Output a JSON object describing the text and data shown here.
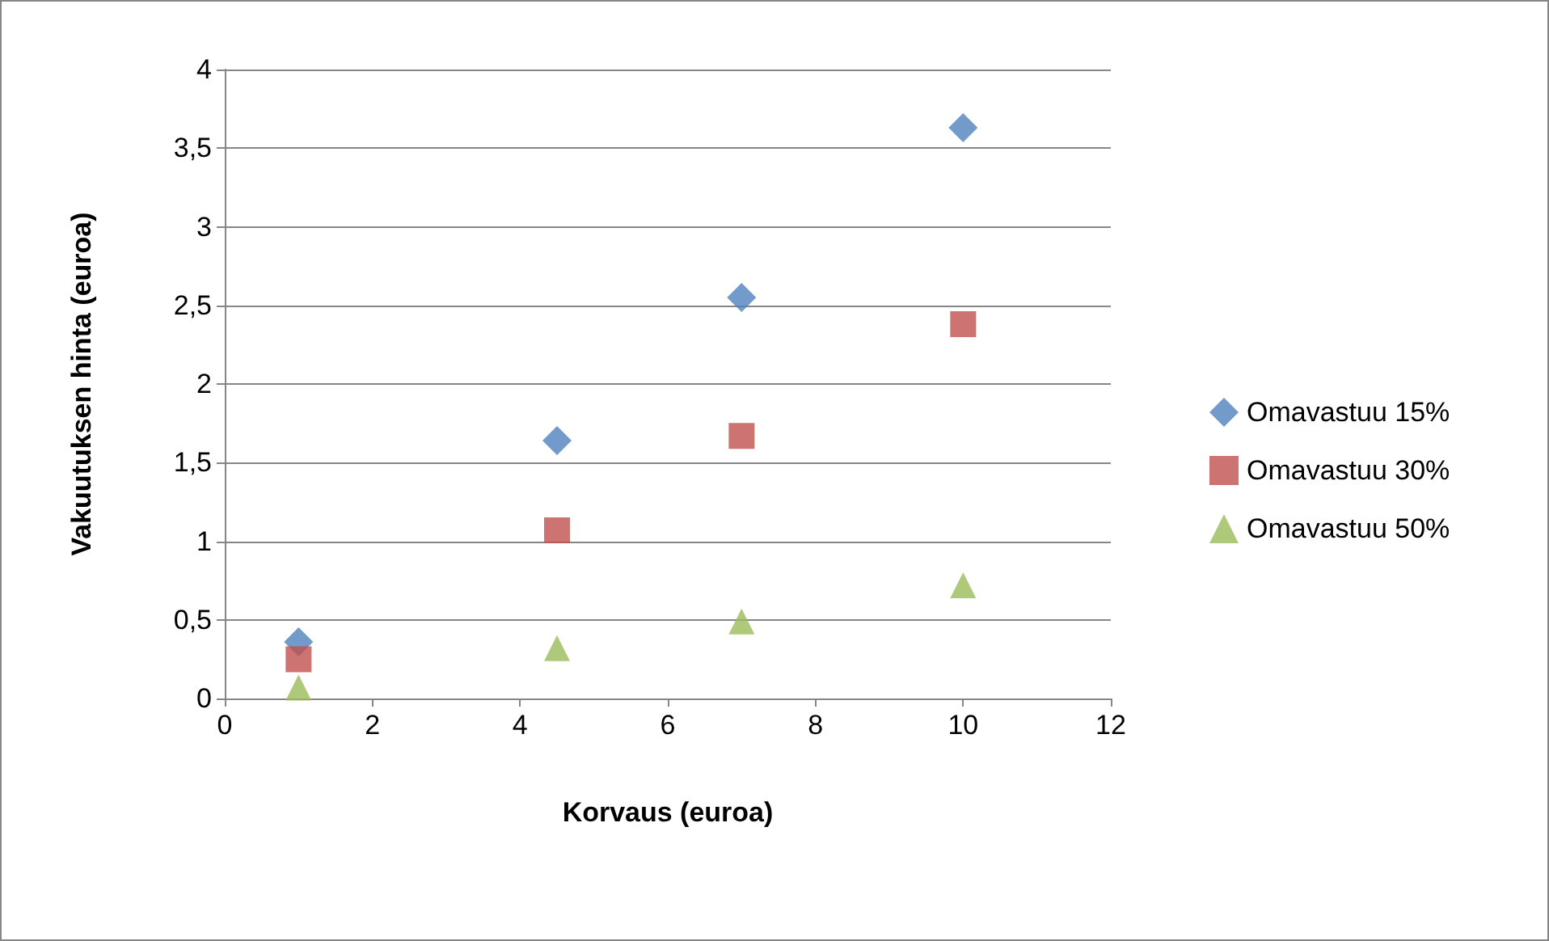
{
  "chart_data": {
    "type": "scatter",
    "xlabel": "Korvaus (euroa)",
    "ylabel": "Vakuutuksen hinta (euroa)",
    "xlim": [
      0,
      12
    ],
    "xticks": [
      0,
      2,
      4,
      6,
      8,
      10,
      12
    ],
    "ylim": [
      0,
      4
    ],
    "yticks": [
      0,
      {
        "value": 0.5,
        "label": "0,5"
      },
      1,
      {
        "value": 1.5,
        "label": "1,5"
      },
      2,
      {
        "value": 2.5,
        "label": "2,5"
      },
      3,
      {
        "value": 3.5,
        "label": "3,5"
      },
      4
    ],
    "grid": "y",
    "legend": "right",
    "x": [
      1,
      4.5,
      7,
      10
    ],
    "series": [
      {
        "name": "Omavastuu 15%",
        "color": "#4f81bd",
        "marker": "diamond",
        "values": [
          0.36,
          1.64,
          2.55,
          3.63
        ]
      },
      {
        "name": "Omavastuu 30%",
        "color": "#c0504d",
        "marker": "square",
        "values": [
          0.25,
          1.07,
          1.67,
          2.38
        ]
      },
      {
        "name": "Omavastuu 50%",
        "color": "#9bbb59",
        "marker": "triangle",
        "values": [
          0.07,
          0.32,
          0.49,
          0.72
        ]
      }
    ]
  }
}
